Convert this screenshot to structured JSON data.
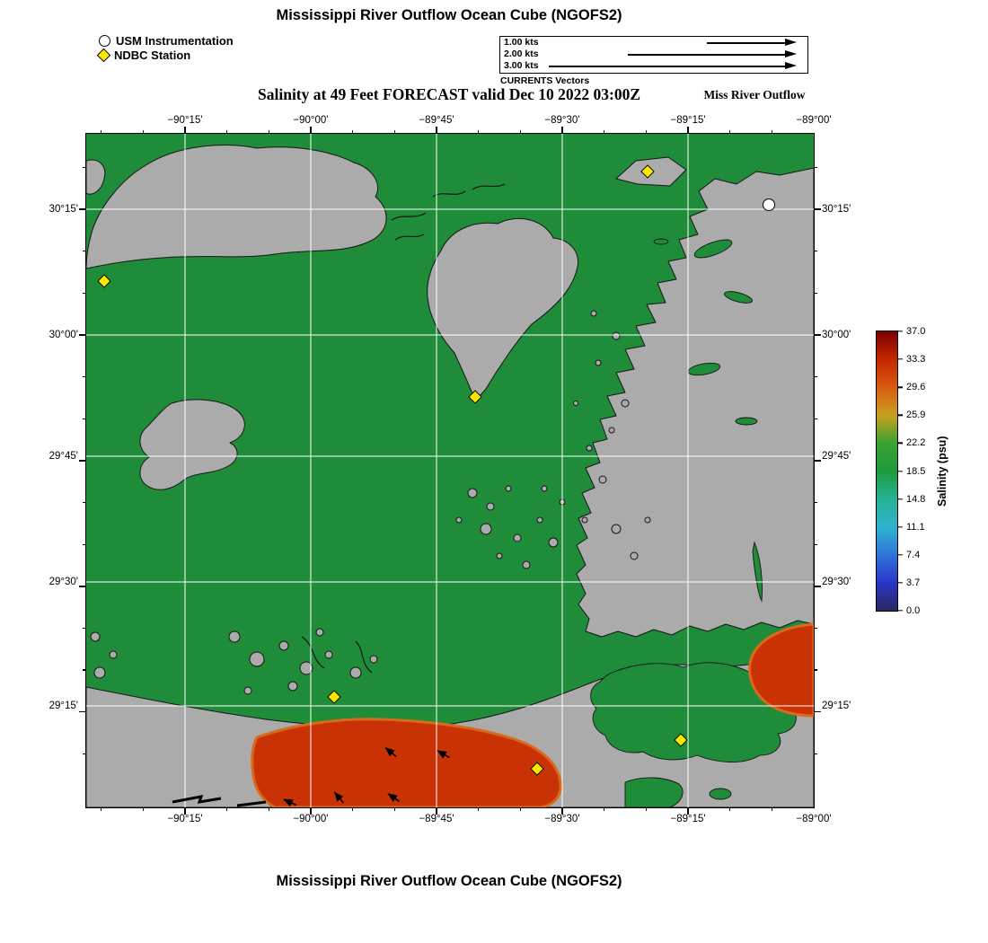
{
  "titles": {
    "top": "Mississippi River Outflow Ocean Cube (NGOFS2)",
    "bottom": "Mississippi River Outflow Ocean Cube (NGOFS2)"
  },
  "legend": {
    "items": [
      {
        "icon": "usm-circle-marker",
        "label": "USM Instrumentation"
      },
      {
        "icon": "ndbc-diamond-marker",
        "label": "NDBC Station"
      }
    ]
  },
  "vector_scale": {
    "caption": "CURRENTS Vectors",
    "rows": [
      {
        "label": "1.00 kts",
        "kts": 1
      },
      {
        "label": "2.00 kts",
        "kts": 2
      },
      {
        "label": "3.00 kts",
        "kts": 3
      }
    ]
  },
  "subtitle": "Salinity at 49 Feet FORECAST valid Dec 10 2022 03:00Z",
  "corner_label": "Miss River Outflow",
  "axes": {
    "x": [
      {
        "label": "−90°15'",
        "f": 0.1358
      },
      {
        "label": "−90°00'",
        "f": 0.3086
      },
      {
        "label": "−89°45'",
        "f": 0.4815
      },
      {
        "label": "−89°30'",
        "f": 0.6543
      },
      {
        "label": "−89°15'",
        "f": 0.8272
      },
      {
        "label": "−89°00'",
        "f": 1.0
      }
    ],
    "y": [
      {
        "label": "30°15'",
        "f": 0.112
      },
      {
        "label": "30°00'",
        "f": 0.2987
      },
      {
        "label": "29°45'",
        "f": 0.4787
      },
      {
        "label": "29°30'",
        "f": 0.6653
      },
      {
        "label": "29°15'",
        "f": 0.8493
      }
    ]
  },
  "markers": {
    "usm": [
      {
        "fx": 0.938,
        "fy": 0.105
      }
    ],
    "ndbc": [
      {
        "fx": 0.772,
        "fy": 0.056
      },
      {
        "fx": 0.025,
        "fy": 0.219
      },
      {
        "fx": 0.535,
        "fy": 0.391
      },
      {
        "fx": 0.341,
        "fy": 0.836
      },
      {
        "fx": 0.62,
        "fy": 0.943
      },
      {
        "fx": 0.817,
        "fy": 0.9
      }
    ]
  },
  "colorbar": {
    "label": "Salinity (psu)",
    "min": 0.0,
    "max": 37.0,
    "ticks": [
      "37.0",
      "33.3",
      "29.6",
      "25.9",
      "22.2",
      "18.5",
      "14.8",
      "11.1",
      "7.4",
      "3.7",
      "0.0"
    ]
  },
  "colors": {
    "water": "#1f8c3a",
    "land": "#ababab",
    "high_salinity_plume": "#c93204",
    "plume_fringe": "#d96a1a",
    "ndbc_marker": "#ffe800",
    "usm_marker": "#ffffff",
    "grid": "#ffffff"
  }
}
